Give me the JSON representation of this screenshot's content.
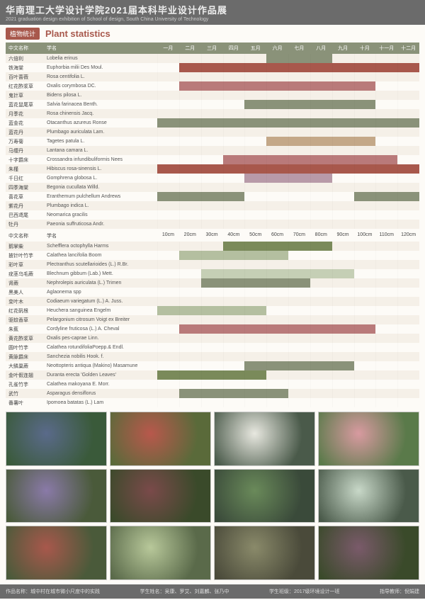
{
  "header": {
    "title_cn": "华南理工大学设计学院2021届本科毕业设计作品展",
    "title_en": "2021 graduation design exhibition of School of design, South China University of Technology"
  },
  "tag": "植物统计",
  "section_title": "Plant statistics",
  "colors": {
    "muted_green": "#8a9279",
    "dusty_rose": "#b97a7a",
    "brick": "#a8584c",
    "sage": "#b4bfa0",
    "pale_green": "#c5cfb5",
    "olive": "#7a8a5a",
    "mauve": "#b89aa8",
    "tan": "#c4a888"
  },
  "chart1": {
    "col_cn": "中文名称",
    "col_lat": "学名",
    "months": [
      "一月",
      "二月",
      "三月",
      "四月",
      "五月",
      "六月",
      "七月",
      "八月",
      "九月",
      "十月",
      "十一月",
      "十二月"
    ],
    "rows": [
      {
        "cn": "六倍利",
        "lat": "Lobelia erinus",
        "bars": [
          {
            "s": 6,
            "e": 8,
            "c": "#8a9279"
          }
        ]
      },
      {
        "cn": "铁海棠",
        "lat": "Euphorbia milii Des Moul.",
        "bars": [
          {
            "s": 2,
            "e": 12,
            "c": "#a8584c"
          }
        ]
      },
      {
        "cn": "百叶蔷薇",
        "lat": "Rosa centifolia L.",
        "bars": []
      },
      {
        "cn": "红花酢浆草",
        "lat": "Oxalis corymbosa DC.",
        "bars": [
          {
            "s": 2,
            "e": 10,
            "c": "#b97a7a"
          }
        ]
      },
      {
        "cn": "鬼针草",
        "lat": "Bidens pilosa L.",
        "bars": []
      },
      {
        "cn": "蓝花鼠尾草",
        "lat": "Salvia farinacea Benth.",
        "bars": [
          {
            "s": 5,
            "e": 10,
            "c": "#8a9279"
          }
        ]
      },
      {
        "cn": "月季花",
        "lat": "Rosa chinensis Jacq.",
        "bars": []
      },
      {
        "cn": "蓝金花",
        "lat": "Otacanthus azureus Ronse",
        "bars": [
          {
            "s": 1,
            "e": 12,
            "c": "#8a9279"
          }
        ]
      },
      {
        "cn": "蓝花丹",
        "lat": "Plumbago auriculata Lam.",
        "bars": []
      },
      {
        "cn": "万寿菊",
        "lat": "Tagetes patula L.",
        "bars": [
          {
            "s": 6,
            "e": 10,
            "c": "#c4a888"
          }
        ]
      },
      {
        "cn": "马缨丹",
        "lat": "Lantana camara L.",
        "bars": []
      },
      {
        "cn": "十字爵床",
        "lat": "Crossandra infundibuliformis Nees",
        "bars": [
          {
            "s": 4,
            "e": 11,
            "c": "#b97a7a"
          }
        ]
      },
      {
        "cn": "朱槿",
        "lat": "Hibiscus rosa-sinensis L.",
        "bars": [
          {
            "s": 1,
            "e": 12,
            "c": "#a8584c"
          }
        ]
      },
      {
        "cn": "千日红",
        "lat": "Gomphrena globosa L.",
        "bars": [
          {
            "s": 5,
            "e": 8,
            "c": "#b89aa8"
          }
        ]
      },
      {
        "cn": "四季海棠",
        "lat": "Begonia cucullata Willd.",
        "bars": []
      },
      {
        "cn": "喜花草",
        "lat": "Eranthemum pulchellum Andrews",
        "bars": [
          {
            "s": 1,
            "e": 4,
            "c": "#8a9279"
          },
          {
            "s": 10,
            "e": 12,
            "c": "#8a9279"
          }
        ]
      },
      {
        "cn": "紫花丹",
        "lat": "Plumbago indica L.",
        "bars": []
      },
      {
        "cn": "巴西鸢尾",
        "lat": "Neomarica gracilis",
        "bars": []
      },
      {
        "cn": "牡丹",
        "lat": "Paeonia suffruticosa Andr.",
        "bars": []
      }
    ]
  },
  "chart2": {
    "col_cn": "中文名称",
    "col_lat": "学名",
    "heights": [
      "10cm",
      "20cm",
      "30cm",
      "40cm",
      "50cm",
      "60cm",
      "70cm",
      "80cm",
      "90cm",
      "100cm",
      "110cm",
      "120cm"
    ],
    "rows": [
      {
        "cn": "鹅掌柴",
        "lat": "Schefflera octophylla Harms",
        "bars": [
          {
            "s": 4,
            "e": 8,
            "c": "#7a8a5a"
          }
        ]
      },
      {
        "cn": "披针叶竹芋",
        "lat": "Calathea lancifolia Boom",
        "bars": [
          {
            "s": 2,
            "e": 6,
            "c": "#b4bfa0"
          }
        ]
      },
      {
        "cn": "彩叶草",
        "lat": "Plectranthus scutellarioides (L.) R.Br.",
        "bars": []
      },
      {
        "cn": "疣茎乌毛蕨",
        "lat": "Blechnum gibbum (Lab.) Mett.",
        "bars": [
          {
            "s": 3,
            "e": 9,
            "c": "#c5cfb5"
          }
        ]
      },
      {
        "cn": "肾蕨",
        "lat": "Nephrolepis auriculata (L.) Trimen",
        "bars": [
          {
            "s": 3,
            "e": 7,
            "c": "#8a9279"
          }
        ]
      },
      {
        "cn": "黑美人",
        "lat": "Aglaonema spp",
        "bars": []
      },
      {
        "cn": "变叶木",
        "lat": "Codiaeum variegatum (L.) A. Juss.",
        "bars": []
      },
      {
        "cn": "红花矾根",
        "lat": "Heuchera sanguinea Engelm",
        "bars": [
          {
            "s": 1,
            "e": 5,
            "c": "#b4bfa0"
          }
        ]
      },
      {
        "cn": "驱蚊香草",
        "lat": "Pelargonium citrosum Voigt ex Breiter",
        "bars": []
      },
      {
        "cn": "朱蕉",
        "lat": "Cordyline fruticosa (L.) A. Cheval",
        "bars": [
          {
            "s": 2,
            "e": 10,
            "c": "#b97a7a"
          }
        ]
      },
      {
        "cn": "黄花酢浆草",
        "lat": "Oxalis pes-caprae Linn.",
        "bars": []
      },
      {
        "cn": "圆叶竹芋",
        "lat": "Calathea rotundifoliaPoepp.& Endl.",
        "bars": []
      },
      {
        "cn": "黄脉爵床",
        "lat": "Sanchezia nobilis Hook. f.",
        "bars": []
      },
      {
        "cn": "大鳞巢蕨",
        "lat": "Neottopteris antiqua (Makino) Masamune",
        "bars": [
          {
            "s": 5,
            "e": 9,
            "c": "#8a9279"
          }
        ]
      },
      {
        "cn": "金叶假连翘",
        "lat": "Duranta erecta 'Golden Leaves'",
        "bars": [
          {
            "s": 1,
            "e": 5,
            "c": "#7a8a5a"
          }
        ]
      },
      {
        "cn": "孔雀竹芋",
        "lat": "Calathea makoyana E. Morr.",
        "bars": []
      },
      {
        "cn": "武竹",
        "lat": "Asparagus densiflorus",
        "bars": [
          {
            "s": 2,
            "e": 6,
            "c": "#8a9279"
          }
        ]
      },
      {
        "cn": "番薯叶",
        "lat": "Ipomoea batatas (L.) Lam",
        "bars": []
      }
    ]
  },
  "photos": [
    [
      "#5a6a8a",
      "#3a5a3a"
    ],
    [
      "#b8584c",
      "#5a6a3a"
    ],
    [
      "#e8e8e0",
      "#4a5a4a"
    ],
    [
      "#d89aa0",
      "#5a7a4a"
    ],
    [
      "#8a7aa8",
      "#4a5a3a"
    ],
    [
      "#7a4a4a",
      "#3a4a2a"
    ],
    [
      "#6a8a5a",
      "#3a4a3a"
    ],
    [
      "#c8d8c8",
      "#4a5a4a"
    ],
    [
      "#a8584c",
      "#4a5a3a"
    ],
    [
      "#b8c89a",
      "#5a6a4a"
    ],
    [
      "#8a8a6a",
      "#4a4a3a"
    ],
    [
      "#7a5a6a",
      "#3a4a2a"
    ]
  ],
  "footer": {
    "f1_label": "作品名称：",
    "f1_val": "城中村在城市微小尺度中的实践",
    "f2_label": "学生姓名：",
    "f2_val": "吴康、罗艾、刘嘉麟、张乃中",
    "f3_label": "学生班级：",
    "f3_val": "2017级环境设计一班",
    "f4_label": "指导教师：",
    "f4_val": "倪娟建"
  }
}
